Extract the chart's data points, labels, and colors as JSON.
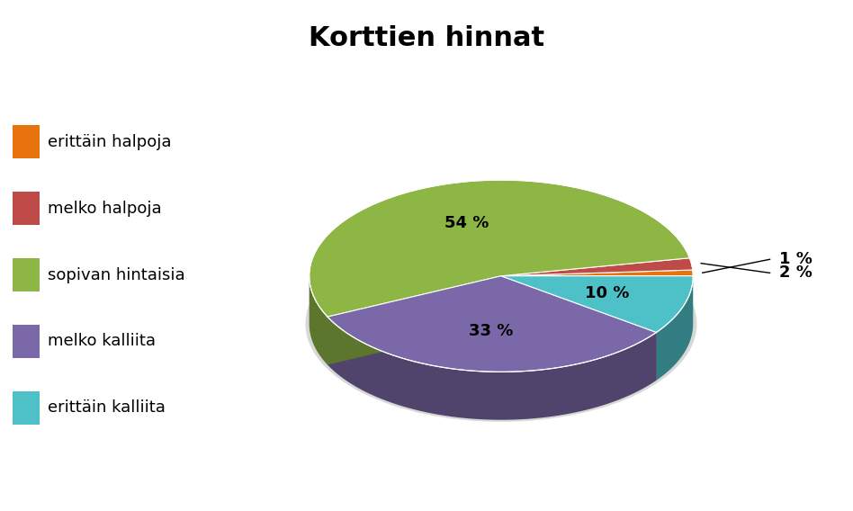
{
  "title": "Korttien hinnat",
  "labels": [
    "erittäin halpoja",
    "melko halpoja",
    "sopivan hintaisia",
    "melko kalliita",
    "erittäin kalliita"
  ],
  "values": [
    1,
    2,
    54,
    33,
    10
  ],
  "colors": [
    "#E8720C",
    "#BE4B48",
    "#8DB645",
    "#7B68A8",
    "#4DC0C8"
  ],
  "legend_labels": [
    "erittäin halpoja",
    "melko halpoja",
    "sopivan hintaisia",
    "melko kalliita",
    "erittäin kalliita"
  ],
  "title_fontsize": 22,
  "label_fontsize": 13,
  "legend_fontsize": 13,
  "background_color": "#FFFFFF",
  "startangle": 0,
  "depth": 0.25,
  "yscale": 0.5
}
